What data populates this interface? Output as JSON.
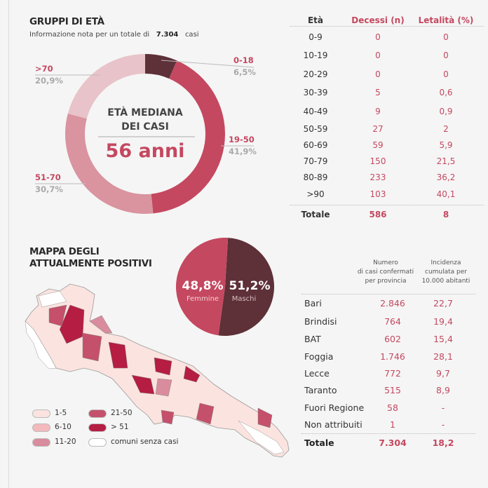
{
  "age_groups": {
    "title": "GRUPPI DI ETÀ",
    "subtitle_prefix": "Informazione nota per un totale di",
    "subtitle_total": "7.304",
    "subtitle_suffix": "casi",
    "center_label_1": "ETÀ MEDIANA",
    "center_label_2": "DEI CASI",
    "center_value": "56 anni"
  },
  "map": {
    "title_1": "MAPPA DEGLI",
    "title_2": "ATTUALMENTE POSITIVI",
    "legend": [
      {
        "label": "1-5",
        "color": "#fbe3df"
      },
      {
        "label": "6-10",
        "color": "#f4b9bd"
      },
      {
        "label": "11-20",
        "color": "#d98c9d"
      },
      {
        "label": "21-50",
        "color": "#c4506b"
      },
      {
        "label": "> 51",
        "color": "#b51d42"
      },
      {
        "label": "comuni senza casi",
        "color": "#ffffff"
      }
    ]
  },
  "deaths_table": {
    "headers": [
      "Età",
      "Decessi (n)",
      "Letalità (%)"
    ],
    "rows": [
      [
        "0-9",
        "0",
        "0"
      ],
      [
        "10-19",
        "0",
        "0"
      ],
      [
        "20-29",
        "0",
        "0"
      ],
      [
        "30-39",
        "5",
        "0,6"
      ],
      [
        "40-49",
        "9",
        "0,9"
      ],
      [
        "50-59",
        "27",
        "2"
      ],
      [
        "60-69",
        "59",
        "5,9"
      ],
      [
        "70-79",
        "150",
        "21,5"
      ],
      [
        "80-89",
        "233",
        "36,2"
      ],
      [
        ">90",
        "103",
        "40,1"
      ]
    ],
    "total": [
      "Totale",
      "586",
      "8"
    ]
  },
  "province_table": {
    "header_cases": [
      "Numero",
      "di casi confermati",
      "per provincia"
    ],
    "header_incidence": [
      "Incidenza",
      "cumulata per",
      "10.000 abitanti"
    ],
    "rows": [
      [
        "Bari",
        "2.846",
        "22,7"
      ],
      [
        "Brindisi",
        "764",
        "19,4"
      ],
      [
        "BAT",
        "602",
        "15,4"
      ],
      [
        "Foggia",
        "1.746",
        "28,1"
      ],
      [
        "Lecce",
        "772",
        "9,7"
      ],
      [
        "Taranto",
        "515",
        "8,9"
      ],
      [
        "Fuori Regione",
        "58",
        "-"
      ],
      [
        "Non attribuiti",
        "1",
        "-"
      ]
    ],
    "total": [
      "Totale",
      "7.304",
      "18,2"
    ]
  },
  "chart_data": [
    {
      "type": "pie",
      "variant": "donut",
      "title": "GRUPPI DI ETÀ",
      "categories": [
        "0-18",
        "19-50",
        "51-70",
        ">70"
      ],
      "labels_pct": [
        "6,5%",
        "41,9%",
        "30,7%",
        "20,9%"
      ],
      "values": [
        6.5,
        41.9,
        30.7,
        20.9
      ],
      "colors": [
        "#5e3038",
        "#c44860",
        "#d9949f",
        "#e8c3c9"
      ]
    },
    {
      "type": "pie",
      "categories": [
        "Femmine",
        "Maschi"
      ],
      "labels_pct": [
        "48,8%",
        "51,2%"
      ],
      "values": [
        48.8,
        51.2
      ],
      "colors": [
        "#c44860",
        "#5e3038"
      ]
    }
  ]
}
